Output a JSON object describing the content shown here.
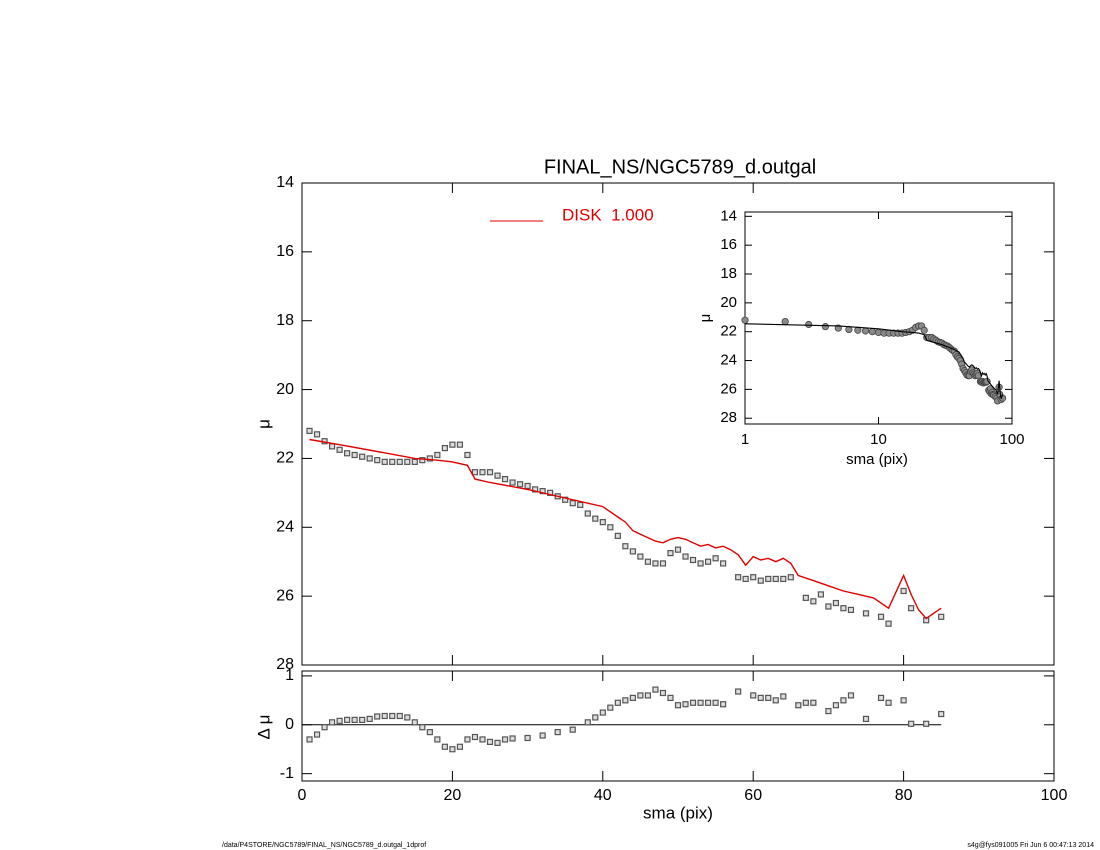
{
  "chart_data": [
    {
      "type": "scatter",
      "title": "FINAL_NS/NGC5789_d.outgal",
      "ylabel": "μ",
      "xlim": [
        0,
        100
      ],
      "ylim": [
        28,
        14
      ],
      "yticks": [
        14,
        16,
        18,
        20,
        22,
        24,
        26,
        28
      ],
      "legend": "top",
      "series": [
        {
          "type": "scatter",
          "color": "#555555",
          "x": [
            1,
            2,
            3,
            4,
            5,
            6,
            7,
            8,
            9,
            10,
            11,
            12,
            13,
            14,
            15,
            16,
            17,
            18,
            19,
            20,
            21,
            22,
            23,
            24,
            25,
            26,
            27,
            28,
            29,
            30,
            31,
            32,
            33,
            34,
            35,
            36,
            37,
            38,
            39,
            40,
            41,
            42,
            43,
            44,
            45,
            46,
            47,
            48,
            49,
            50,
            51,
            52,
            53,
            54,
            55,
            56,
            58,
            59,
            60,
            61,
            62,
            63,
            64,
            65,
            67,
            68,
            69,
            70,
            71,
            72,
            73,
            75,
            77,
            78,
            80,
            81,
            83,
            85
          ],
          "values": [
            21.2,
            21.3,
            21.5,
            21.65,
            21.75,
            21.85,
            21.9,
            21.95,
            22.0,
            22.05,
            22.1,
            22.1,
            22.1,
            22.1,
            22.1,
            22.05,
            22.0,
            21.9,
            21.7,
            21.6,
            21.6,
            21.9,
            22.4,
            22.4,
            22.4,
            22.5,
            22.6,
            22.7,
            22.75,
            22.8,
            22.9,
            22.95,
            23.0,
            23.1,
            23.2,
            23.3,
            23.35,
            23.6,
            23.75,
            23.85,
            24.0,
            24.25,
            24.55,
            24.7,
            24.85,
            25.0,
            25.05,
            25.05,
            24.75,
            24.65,
            24.85,
            24.95,
            25.05,
            25.0,
            24.9,
            25.05,
            25.45,
            25.5,
            25.45,
            25.55,
            25.5,
            25.5,
            25.5,
            25.45,
            26.05,
            26.15,
            25.95,
            26.3,
            26.2,
            26.35,
            26.4,
            26.5,
            26.6,
            26.8,
            25.85,
            26.35,
            26.7,
            26.6
          ]
        },
        {
          "type": "line",
          "name": "DISK  1.000",
          "color": "#e00000",
          "x": [
            1,
            5,
            10,
            15,
            18,
            20,
            22,
            23,
            25,
            30,
            35,
            38,
            40,
            41,
            42,
            43,
            44,
            45,
            47,
            48,
            49,
            50,
            51,
            52,
            53,
            54,
            55,
            56,
            57,
            58,
            59,
            60,
            61,
            62,
            63,
            64,
            65,
            66,
            68,
            70,
            72,
            74,
            76,
            78,
            80,
            81,
            82,
            83,
            85
          ],
          "values": [
            21.45,
            21.6,
            21.8,
            22.0,
            22.05,
            22.1,
            22.2,
            22.6,
            22.7,
            22.9,
            23.15,
            23.3,
            23.4,
            23.55,
            23.7,
            23.85,
            24.1,
            24.2,
            24.4,
            24.45,
            24.35,
            24.3,
            24.35,
            24.45,
            24.55,
            24.5,
            24.6,
            24.55,
            24.65,
            24.8,
            25.1,
            24.85,
            24.95,
            24.9,
            25.0,
            24.9,
            25.05,
            25.4,
            25.55,
            25.7,
            25.85,
            25.95,
            26.05,
            26.35,
            25.4,
            25.95,
            26.4,
            26.65,
            26.35
          ]
        }
      ]
    },
    {
      "type": "scatter",
      "xlabel": "sma (pix)",
      "ylabel": "Δ μ",
      "xlim": [
        0,
        100
      ],
      "xticks": [
        0,
        20,
        40,
        60,
        80,
        100
      ],
      "ylim": [
        -1.15,
        1.1
      ],
      "yticks": [
        -1,
        0,
        1
      ],
      "hline": 0,
      "series": [
        {
          "color": "#555555",
          "x": [
            1,
            2,
            3,
            4,
            5,
            6,
            7,
            8,
            9,
            10,
            11,
            12,
            13,
            14,
            15,
            16,
            17,
            18,
            19,
            20,
            21,
            22,
            23,
            24,
            25,
            26,
            27,
            28,
            30,
            32,
            34,
            36,
            38,
            39,
            40,
            41,
            42,
            43,
            44,
            45,
            46,
            47,
            48,
            49,
            50,
            51,
            52,
            53,
            54,
            55,
            56,
            58,
            60,
            61,
            62,
            63,
            64,
            66,
            67,
            68,
            70,
            71,
            72,
            73,
            75,
            77,
            78,
            80,
            81,
            83,
            85
          ],
          "values": [
            -0.3,
            -0.2,
            -0.05,
            0.05,
            0.08,
            0.1,
            0.1,
            0.1,
            0.12,
            0.17,
            0.18,
            0.18,
            0.18,
            0.15,
            0.05,
            -0.05,
            -0.15,
            -0.3,
            -0.45,
            -0.5,
            -0.45,
            -0.3,
            -0.25,
            -0.3,
            -0.35,
            -0.37,
            -0.3,
            -0.28,
            -0.27,
            -0.22,
            -0.15,
            -0.1,
            0.05,
            0.15,
            0.25,
            0.35,
            0.45,
            0.5,
            0.55,
            0.6,
            0.6,
            0.72,
            0.65,
            0.55,
            0.4,
            0.42,
            0.45,
            0.45,
            0.45,
            0.45,
            0.42,
            0.68,
            0.6,
            0.55,
            0.55,
            0.5,
            0.58,
            0.4,
            0.45,
            0.45,
            0.28,
            0.4,
            0.5,
            0.6,
            0.12,
            0.55,
            0.45,
            0.5,
            0.02,
            0.02,
            0.22
          ]
        }
      ]
    },
    {
      "type": "line",
      "xlabel": "sma (pix)",
      "ylabel": "μ",
      "log_x": true,
      "xlim": [
        1,
        100
      ],
      "xticks": [
        1,
        10,
        100
      ],
      "ylim": [
        28.4,
        13.7
      ],
      "yticks": [
        14,
        16,
        18,
        20,
        22,
        24,
        26,
        28
      ],
      "point_color": "#8a8a8a",
      "line_color": "#000000"
    }
  ],
  "footer": {
    "left": "/data/P4STORE/NGC5789/FINAL_NS/NGC5789_d.outgal_1dprof",
    "right": "s4g@fys091005  Fri Jun  6 00:47:13 2014"
  }
}
